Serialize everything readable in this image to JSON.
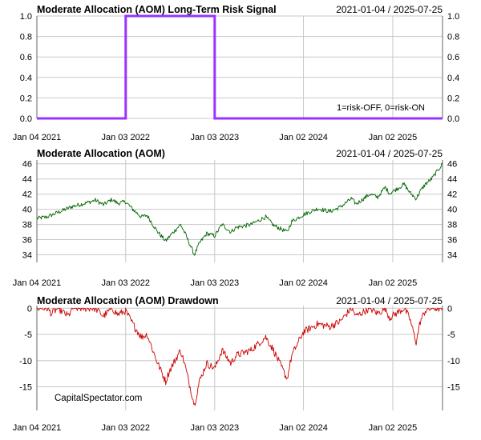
{
  "chart_data": [
    {
      "type": "line",
      "title": "Moderate Allocation (AOM) Long-Term Risk Signal",
      "date_range": "2021-01-04 / 2025-07-25",
      "x_range": [
        "2021-01-04",
        "2025-07-25"
      ],
      "x_ticks": [
        "Jan 04 2021",
        "Jan 03 2022",
        "Jan 03 2023",
        "Jan 02 2024",
        "Jan 02 2025"
      ],
      "ylim": [
        0,
        1
      ],
      "y_ticks": [
        "0.0",
        "0.2",
        "0.4",
        "0.6",
        "0.8",
        "1.0"
      ],
      "grid": true,
      "color": "#9933ff",
      "annotation": "1=risk-OFF, 0=risk-ON",
      "series": [
        {
          "x": [
            "2021-01-04",
            "2022-01-03",
            "2022-01-03",
            "2023-01-03",
            "2023-01-03",
            "2025-07-25"
          ],
          "values": [
            0,
            0,
            1,
            1,
            0,
            0
          ]
        }
      ]
    },
    {
      "type": "line",
      "title": "Moderate Allocation (AOM)",
      "date_range": "2021-01-04 / 2025-07-25",
      "x_range": [
        "2021-01-04",
        "2025-07-25"
      ],
      "x_ticks": [
        "Jan 04 2021",
        "Jan 03 2022",
        "Jan 03 2023",
        "Jan 02 2024",
        "Jan 02 2025"
      ],
      "ylim": [
        33,
        46.5
      ],
      "y_ticks": [
        "34",
        "36",
        "38",
        "40",
        "42",
        "44",
        "46"
      ],
      "grid": true,
      "color": "#006400",
      "series": [
        {
          "x": [
            "2021-01-04",
            "2021-02-15",
            "2021-04-01",
            "2021-06-01",
            "2021-08-01",
            "2021-09-01",
            "2021-10-04",
            "2021-11-08",
            "2021-12-01",
            "2022-01-03",
            "2022-02-01",
            "2022-03-08",
            "2022-04-01",
            "2022-05-10",
            "2022-06-16",
            "2022-07-01",
            "2022-08-16",
            "2022-09-01",
            "2022-10-12",
            "2022-11-01",
            "2022-12-01",
            "2023-01-03",
            "2023-02-02",
            "2023-03-10",
            "2023-04-01",
            "2023-06-01",
            "2023-07-31",
            "2023-09-01",
            "2023-10-27",
            "2023-11-15",
            "2024-01-02",
            "2024-03-01",
            "2024-04-19",
            "2024-06-01",
            "2024-07-16",
            "2024-08-05",
            "2024-09-30",
            "2024-11-01",
            "2024-12-02",
            "2024-12-20",
            "2025-02-18",
            "2025-03-13",
            "2025-04-08",
            "2025-04-25",
            "2025-05-15",
            "2025-06-10",
            "2025-07-25"
          ],
          "values": [
            38.8,
            39.0,
            39.6,
            40.4,
            40.9,
            41.2,
            40.6,
            41.3,
            40.8,
            41.0,
            40.0,
            39.0,
            39.2,
            37.2,
            35.8,
            36.4,
            38.0,
            37.0,
            34.0,
            35.5,
            36.8,
            36.5,
            38.0,
            37.0,
            37.6,
            38.0,
            39.0,
            37.9,
            37.0,
            38.4,
            39.3,
            40.1,
            39.7,
            40.3,
            41.4,
            40.7,
            42.0,
            41.6,
            42.9,
            42.1,
            43.3,
            42.2,
            41.4,
            42.4,
            43.3,
            44.0,
            46.0
          ]
        }
      ]
    },
    {
      "type": "line",
      "title": "Moderate Allocation (AOM) Drawdown",
      "date_range": "2021-01-04 / 2025-07-25",
      "x_range": [
        "2021-01-04",
        "2025-07-25"
      ],
      "x_ticks": [
        "Jan 04 2021",
        "Jan 03 2022",
        "Jan 03 2023",
        "Jan 02 2024",
        "Jan 02 2025"
      ],
      "ylim": [
        -19.5,
        0.5
      ],
      "y_ticks": [
        "-15",
        "-10",
        "-5",
        "0"
      ],
      "grid": true,
      "color": "#cc0000",
      "series": [
        {
          "x": [
            "2021-01-04",
            "2021-02-15",
            "2021-03-05",
            "2021-04-01",
            "2021-05-12",
            "2021-06-01",
            "2021-08-01",
            "2021-09-01",
            "2021-10-04",
            "2021-11-08",
            "2021-12-01",
            "2022-01-03",
            "2022-02-01",
            "2022-03-08",
            "2022-04-01",
            "2022-05-10",
            "2022-06-16",
            "2022-07-01",
            "2022-08-16",
            "2022-09-01",
            "2022-10-12",
            "2022-11-01",
            "2022-12-01",
            "2023-01-03",
            "2023-02-02",
            "2023-03-10",
            "2023-04-01",
            "2023-06-01",
            "2023-07-31",
            "2023-09-01",
            "2023-10-27",
            "2023-11-15",
            "2024-01-02",
            "2024-03-01",
            "2024-04-19",
            "2024-06-01",
            "2024-07-16",
            "2024-08-05",
            "2024-09-30",
            "2024-11-01",
            "2024-12-02",
            "2024-12-20",
            "2025-02-18",
            "2025-03-13",
            "2025-04-08",
            "2025-04-25",
            "2025-05-15",
            "2025-06-10",
            "2025-07-25"
          ],
          "values": [
            0,
            0,
            -1.0,
            0,
            -1.5,
            0,
            0,
            0,
            -1.5,
            0,
            -1.2,
            -0.5,
            -3.0,
            -5.5,
            -5.0,
            -10.0,
            -14.0,
            -12.0,
            -8.0,
            -10.5,
            -18.5,
            -14.0,
            -10.5,
            -11.5,
            -8.0,
            -10.5,
            -9.0,
            -8.0,
            -5.5,
            -8.0,
            -13.5,
            -9.0,
            -4.5,
            -3.0,
            -3.5,
            -2.5,
            0,
            -1.5,
            0,
            -1.0,
            0,
            -1.8,
            0,
            -2.0,
            -6.5,
            -2.5,
            -0.5,
            0,
            0
          ]
        }
      ]
    }
  ],
  "credit": "CapitalSpectator.com"
}
